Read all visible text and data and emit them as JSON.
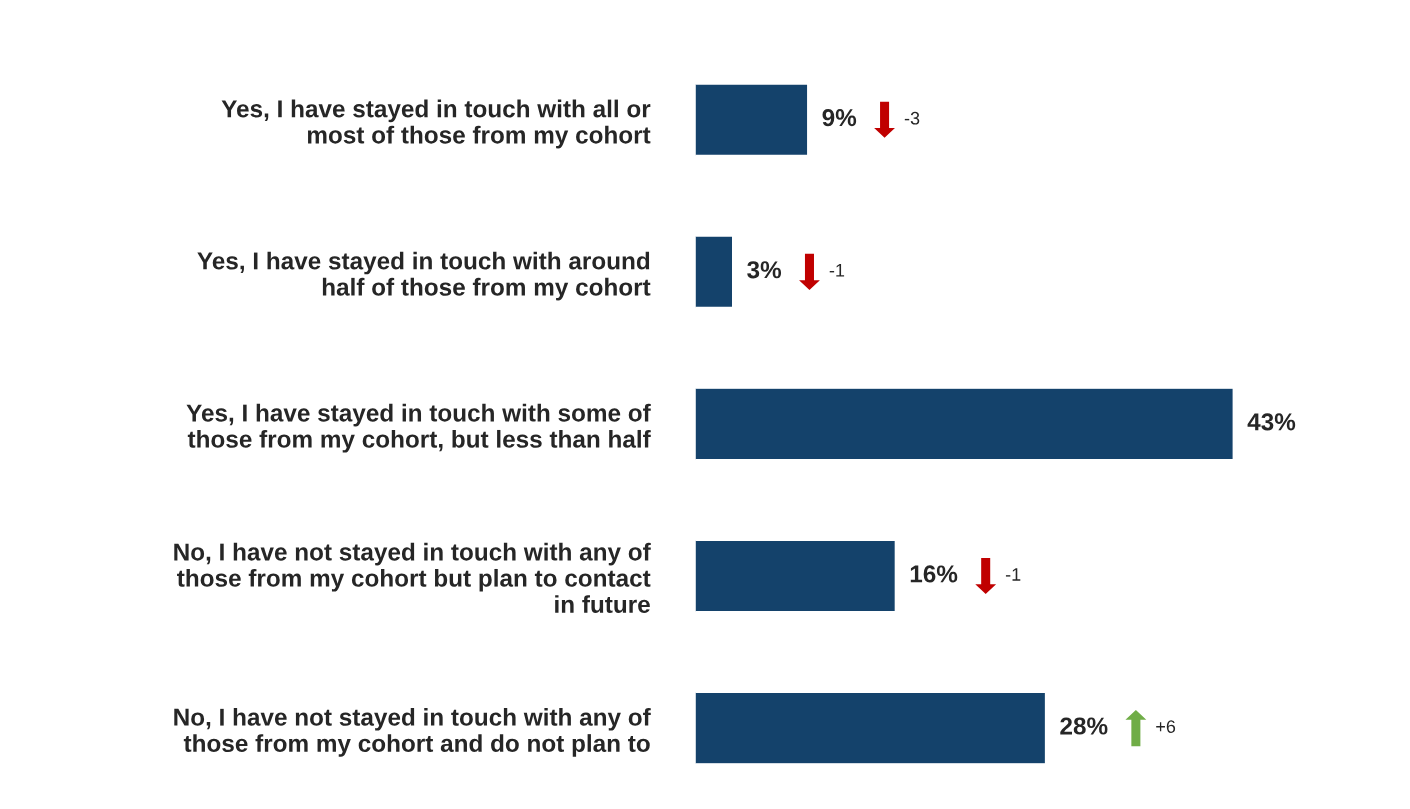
{
  "chart_data": {
    "type": "bar",
    "orientation": "horizontal",
    "categories": [
      "Yes, I have stayed in touch with all or\nmost of those from my cohort",
      "Yes, I have stayed in touch with around\nhalf of those from my cohort",
      "Yes, I have stayed in touch with some of\nthose from my cohort, but less than half",
      "No, I have not stayed in touch with any of\nthose from my cohort but plan to contact\nin future",
      "No, I have not stayed in touch with any of\nthose from my cohort and do not plan to"
    ],
    "values": [
      9,
      3,
      43,
      16,
      28
    ],
    "value_labels": [
      "9%",
      "3%",
      "43%",
      "16%",
      "28%"
    ],
    "color": "#14426b",
    "tick_labels": "y",
    "grid": false,
    "legend": false,
    "annotations": [
      "-3",
      "-1",
      null,
      "-1",
      "+6"
    ]
  }
}
